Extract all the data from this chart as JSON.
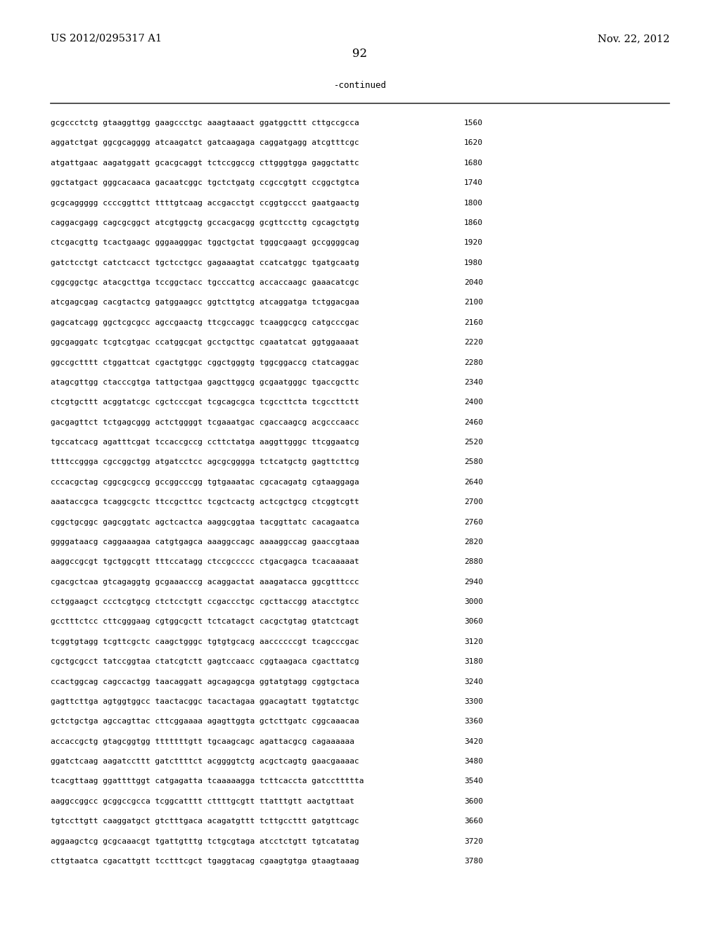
{
  "header_left": "US 2012/0295317 A1",
  "header_right": "Nov. 22, 2012",
  "page_number": "92",
  "continued_label": "-continued",
  "background_color": "#ffffff",
  "text_color": "#000000",
  "font_size_header": 10.5,
  "font_size_body": 8.0,
  "font_size_page": 12,
  "font_size_continued": 9.0,
  "sequence_lines": [
    [
      "gcgccctctg gtaaggttgg gaagccctgc aaagtaaact ggatggcttt cttgccgcca",
      "1560"
    ],
    [
      "aggatctgat ggcgcagggg atcaagatct gatcaagaga caggatgagg atcgtttcgc",
      "1620"
    ],
    [
      "atgattgaac aagatggatt gcacgcaggt tctccggccg cttgggtgga gaggctattc",
      "1680"
    ],
    [
      "ggctatgact gggcacaaca gacaatcggc tgctctgatg ccgccgtgtt ccggctgtca",
      "1740"
    ],
    [
      "gcgcaggggg ccccggttct ttttgtcaag accgacctgt ccggtgccct gaatgaactg",
      "1800"
    ],
    [
      "caggacgagg cagcgcggct atcgtggctg gccacgacgg gcgttccttg cgcagctgtg",
      "1860"
    ],
    [
      "ctcgacgttg tcactgaagc gggaagggac tggctgctat tgggcgaagt gccggggcag",
      "1920"
    ],
    [
      "gatctcctgt catctcacct tgctcctgcc gagaaagtat ccatcatggc tgatgcaatg",
      "1980"
    ],
    [
      "cggcggctgc atacgcttga tccggctacc tgcccattcg accaccaagc gaaacatcgc",
      "2040"
    ],
    [
      "atcgagcgag cacgtactcg gatggaagcc ggtcttgtcg atcaggatga tctggacgaa",
      "2100"
    ],
    [
      "gagcatcagg ggctcgcgcc agccgaactg ttcgccaggc tcaaggcgcg catgcccgac",
      "2160"
    ],
    [
      "ggcgaggatc tcgtcgtgac ccatggcgat gcctgcttgc cgaatatcat ggtggaaaat",
      "2220"
    ],
    [
      "ggccgctttt ctggattcat cgactgtggc cggctgggtg tggcggaccg ctatcaggac",
      "2280"
    ],
    [
      "atagcgttgg ctacccgtga tattgctgaa gagcttggcg gcgaatgggc tgaccgcttc",
      "2340"
    ],
    [
      "ctcgtgcttt acggtatcgc cgctcccgat tcgcagcgca tcgccttcta tcgccttctt",
      "2400"
    ],
    [
      "gacgagttct tctgagcggg actctggggt tcgaaatgac cgaccaagcg acgcccaacc",
      "2460"
    ],
    [
      "tgccatcacg agatttcgat tccaccgccg ccttctatga aaggttgggc ttcggaatcg",
      "2520"
    ],
    [
      "ttttccggga cgccggctgg atgatcctcc agcgcgggga tctcatgctg gagttcttcg",
      "2580"
    ],
    [
      "cccacgctag cggcgcgccg gccggcccgg tgtgaaatac cgcacagatg cgtaaggaga",
      "2640"
    ],
    [
      "aaataccgca tcaggcgctc ttccgcttcc tcgctcactg actcgctgcg ctcggtcgtt",
      "2700"
    ],
    [
      "cggctgcggc gagcggtatc agctcactca aaggcggtaa tacggttatc cacagaatca",
      "2760"
    ],
    [
      "ggggataacg caggaaagaa catgtgagca aaaggccagc aaaaggccag gaaccgtaaa",
      "2820"
    ],
    [
      "aaggccgcgt tgctggcgtt tttccatagg ctccgccccc ctgacgagca tcacaaaaat",
      "2880"
    ],
    [
      "cgacgctcaa gtcagaggtg gcgaaacccg acaggactat aaagatacca ggcgtttccc",
      "2940"
    ],
    [
      "cctggaagct ccctcgtgcg ctctcctgtt ccgaccctgc cgcttaccgg atacctgtcc",
      "3000"
    ],
    [
      "gcctttctcc cttcgggaag cgtggcgctt tctcatagct cacgctgtag gtatctcagt",
      "3060"
    ],
    [
      "tcggtgtagg tcgttcgctc caagctgggc tgtgtgcacg aaccccccgt tcagcccgac",
      "3120"
    ],
    [
      "cgctgcgcct tatccggtaa ctatcgtctt gagtccaacc cggtaagaca cgacttatcg",
      "3180"
    ],
    [
      "ccactggcag cagccactgg taacaggatt agcagagcga ggtatgtagg cggtgctaca",
      "3240"
    ],
    [
      "gagttcttga agtggtggcc taactacggc tacactagaa ggacagtatt tggtatctgc",
      "3300"
    ],
    [
      "gctctgctga agccagttac cttcggaaaa agagttggta gctcttgatc cggcaaacaa",
      "3360"
    ],
    [
      "accaccgctg gtagcggtgg tttttttgtt tgcaagcagc agattacgcg cagaaaaaa",
      "3420"
    ],
    [
      "ggatctcaag aagatccttt gatcttttct acggggtctg acgctcagtg gaacgaaaac",
      "3480"
    ],
    [
      "tcacgttaag ggattttggt catgagatta tcaaaaagga tcttcaccta gatccttttta",
      "3540"
    ],
    [
      "aaggccggcc gcggccgcca tcggcatttt cttttgcgtt ttatttgtt aactgttaat",
      "3600"
    ],
    [
      "tgtccttgtt caaggatgct gtctttgaca acagatgttt tcttgccttt gatgttcagc",
      "3660"
    ],
    [
      "aggaagctcg gcgcaaacgt tgattgtttg tctgcgtaga atcctctgtt tgtcatatag",
      "3720"
    ],
    [
      "cttgtaatca cgacattgtt tcctttcgct tgaggtacag cgaagtgtga gtaagtaaag",
      "3780"
    ]
  ]
}
